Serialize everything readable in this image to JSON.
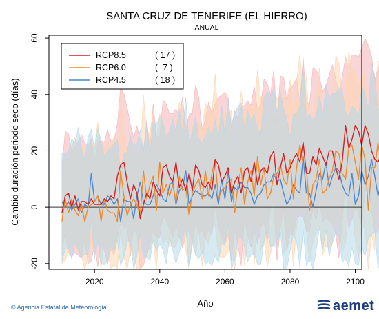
{
  "title": "SANTA CRUZ DE TENERIFE (EL HIERRO)",
  "subtitle": "ANUAL",
  "footer": {
    "agency": "Agencia Estatal de Meteorología",
    "logo_text": "aemet"
  },
  "chart_data": {
    "type": "line",
    "title": "SANTA CRUZ DE TENERIFE (EL HIERRO)",
    "subtitle": "ANUAL",
    "xlabel": "Año",
    "ylabel": "Cambio duración periodo seco (días)",
    "xlim": [
      2006,
      2102
    ],
    "ylim": [
      -22,
      61
    ],
    "xticks": [
      2020,
      2040,
      2060,
      2080,
      2100
    ],
    "yticks": [
      -20,
      0,
      20,
      40,
      60
    ],
    "reference_line": 0,
    "legend_position": "top-left",
    "series": [
      {
        "name": "RCP8.5",
        "count": "( 17 )",
        "color": "#d61f1f",
        "band": "#f6b3b8",
        "x_start": 2010,
        "values": [
          -2,
          4,
          5,
          0,
          4,
          -1,
          2,
          2,
          1,
          3,
          1,
          1,
          1,
          3,
          2,
          4,
          3,
          11,
          15,
          16,
          9,
          3,
          8,
          5,
          -4,
          1,
          5,
          3,
          9,
          6,
          4,
          14,
          15,
          11,
          9,
          16,
          7,
          10,
          6,
          12,
          6,
          15,
          13,
          8,
          7,
          9,
          6,
          17,
          15,
          9,
          11,
          14,
          5,
          9,
          11,
          5,
          13,
          14,
          9,
          16,
          8,
          13,
          14,
          12,
          18,
          20,
          8,
          14,
          19,
          12,
          14,
          17,
          19,
          16,
          23,
          12,
          12,
          18,
          15,
          21,
          18,
          15,
          20,
          20,
          14,
          10,
          16,
          29,
          21,
          24,
          29,
          27,
          22,
          29,
          26,
          20,
          17,
          16,
          19,
          21
        ]
      },
      {
        "name": "RCP6.0",
        "count": "(  7 )",
        "color": "#f08a2e",
        "band": "#fbd6b0",
        "x_start": 2010,
        "values": [
          -5,
          3,
          -2,
          3,
          -1,
          -3,
          1,
          -5,
          0,
          1,
          2,
          4,
          -5,
          3,
          -1,
          -2,
          -2,
          -5,
          13,
          4,
          -3,
          1,
          3,
          1,
          -3,
          13,
          3,
          8,
          11,
          -1,
          16,
          5,
          8,
          4,
          8,
          2,
          11,
          6,
          7,
          -3,
          5,
          8,
          10,
          3,
          13,
          4,
          12,
          17,
          3,
          6,
          7,
          9,
          10,
          -2,
          8,
          14,
          1,
          9,
          13,
          4,
          18,
          8,
          14,
          3,
          5,
          11,
          12,
          15,
          10,
          8,
          17,
          3,
          14,
          22,
          15,
          14,
          -1,
          8,
          10,
          17,
          5,
          6,
          10,
          13,
          20,
          19,
          12,
          10,
          21,
          22,
          16,
          10,
          22,
          17,
          -1,
          14,
          14,
          23,
          15,
          26,
          25
        ]
      },
      {
        "name": "RCP4.5",
        "count": "( 18 )",
        "color": "#4a88cf",
        "band": "#b5d9ea",
        "x_start": 2010,
        "values": [
          2,
          0,
          2,
          -1,
          1,
          3,
          -2,
          1,
          0,
          12,
          2,
          4,
          1,
          1,
          4,
          3,
          1,
          3,
          -5,
          3,
          2,
          2,
          -4,
          4,
          9,
          2,
          1,
          1,
          4,
          8,
          6,
          3,
          2,
          8,
          9,
          1,
          6,
          7,
          13,
          1,
          4,
          6,
          5,
          4,
          4,
          5,
          3,
          8,
          1,
          10,
          3,
          13,
          2,
          7,
          6,
          9,
          7,
          7,
          5,
          1,
          4,
          5,
          8,
          9,
          9,
          12,
          9,
          10,
          5,
          1,
          3,
          8,
          6,
          5,
          18,
          5,
          5,
          0,
          6,
          12,
          10,
          16,
          7,
          11,
          14,
          13,
          8,
          5,
          4,
          12,
          1,
          4,
          13,
          8,
          11,
          17,
          11,
          4,
          9,
          14,
          6
        ]
      }
    ]
  }
}
